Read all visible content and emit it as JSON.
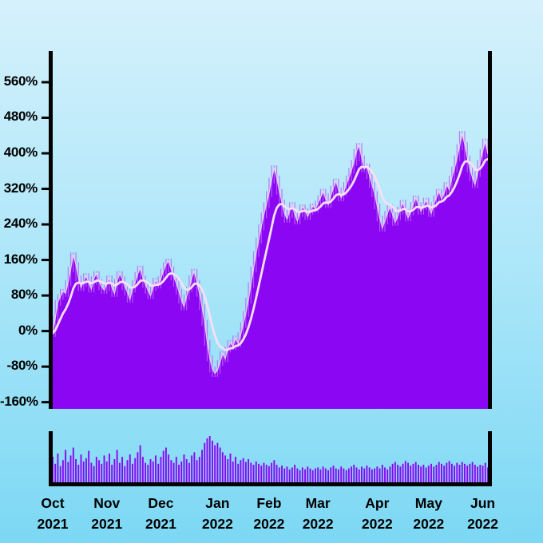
{
  "colors": {
    "background_top": "#d5f1fc",
    "background_bottom": "#7cd8f4",
    "area_fill": "#8b06f3",
    "wick": "#b868f7",
    "edge_line": "#eec9f9",
    "ma_line": "#f6e0f6",
    "axis": "#000000",
    "label": "#000000"
  },
  "chart_data": {
    "type": "area",
    "title": "",
    "grid": false,
    "legend": "none",
    "ylim": [
      -175,
      630
    ],
    "y_ticks": [
      560,
      480,
      400,
      320,
      240,
      160,
      80,
      0,
      -80,
      -160
    ],
    "y_tick_labels": [
      "560%",
      "480%",
      "400%",
      "320%",
      "240%",
      "160%",
      "80%",
      "0%",
      "-80%",
      "-160%"
    ],
    "x_months": [
      {
        "month": "Oct",
        "year": "2021",
        "index": 0
      },
      {
        "month": "Nov",
        "year": "2021",
        "index": 21
      },
      {
        "month": "Dec",
        "year": "2021",
        "index": 42
      },
      {
        "month": "Jan",
        "year": "2022",
        "index": 64
      },
      {
        "month": "Feb",
        "year": "2022",
        "index": 84
      },
      {
        "month": "Mar",
        "year": "2022",
        "index": 103
      },
      {
        "month": "Apr",
        "year": "2022",
        "index": 126
      },
      {
        "month": "May",
        "year": "2022",
        "index": 146
      },
      {
        "month": "Jun",
        "year": "2022",
        "index": 167
      }
    ],
    "series": [
      {
        "name": "percent_change",
        "unit": "%",
        "values": [
          -5,
          30,
          65,
          78,
          90,
          85,
          110,
          140,
          172,
          150,
          120,
          98,
          112,
          125,
          108,
          95,
          118,
          130,
          112,
          100,
          92,
          105,
          120,
          98,
          85,
          112,
          130,
          118,
          100,
          88,
          72,
          95,
          110,
          128,
          142,
          120,
          105,
          92,
          80,
          98,
          115,
          104,
          118,
          135,
          150,
          158,
          140,
          122,
          108,
          90,
          70,
          55,
          78,
          95,
          120,
          135,
          110,
          85,
          55,
          20,
          -25,
          -60,
          -85,
          -95,
          -88,
          -70,
          -50,
          -62,
          -40,
          -25,
          -35,
          -15,
          -28,
          -8,
          15,
          40,
          70,
          105,
          140,
          175,
          205,
          235,
          262,
          285,
          310,
          340,
          368,
          345,
          315,
          290,
          265,
          252,
          270,
          285,
          262,
          248,
          265,
          280,
          272,
          258,
          270,
          282,
          275,
          288,
          300,
          315,
          298,
          285,
          305,
          322,
          338,
          318,
          300,
          312,
          330,
          345,
          362,
          380,
          405,
          418,
          390,
          365,
          372,
          350,
          330,
          310,
          282,
          255,
          232,
          248,
          265,
          280,
          262,
          245,
          258,
          275,
          290,
          270,
          255,
          268,
          285,
          300,
          285,
          270,
          282,
          295,
          280,
          265,
          285,
          300,
          315,
          298,
          310,
          330,
          318,
          345,
          365,
          390,
          415,
          445,
          420,
          390,
          365,
          345,
          330,
          355,
          380,
          405,
          428,
          398
        ]
      },
      {
        "name": "moving_average",
        "derived_from": "percent_change",
        "method": "ema",
        "alpha": 0.2
      }
    ],
    "volume": {
      "name": "volume",
      "normalized": true,
      "values": [
        0.55,
        0.4,
        0.62,
        0.35,
        0.48,
        0.7,
        0.44,
        0.58,
        0.75,
        0.5,
        0.38,
        0.6,
        0.45,
        0.52,
        0.68,
        0.42,
        0.35,
        0.55,
        0.48,
        0.4,
        0.58,
        0.45,
        0.62,
        0.38,
        0.5,
        0.7,
        0.42,
        0.55,
        0.35,
        0.48,
        0.6,
        0.4,
        0.52,
        0.65,
        0.8,
        0.55,
        0.42,
        0.38,
        0.5,
        0.45,
        0.58,
        0.4,
        0.55,
        0.68,
        0.75,
        0.6,
        0.48,
        0.42,
        0.55,
        0.38,
        0.45,
        0.6,
        0.5,
        0.42,
        0.58,
        0.65,
        0.48,
        0.55,
        0.7,
        0.85,
        0.95,
        1.0,
        0.9,
        0.8,
        0.85,
        0.75,
        0.65,
        0.58,
        0.5,
        0.62,
        0.45,
        0.55,
        0.4,
        0.48,
        0.52,
        0.44,
        0.5,
        0.42,
        0.38,
        0.45,
        0.4,
        0.36,
        0.42,
        0.38,
        0.35,
        0.42,
        0.48,
        0.38,
        0.32,
        0.36,
        0.3,
        0.34,
        0.28,
        0.32,
        0.38,
        0.3,
        0.26,
        0.32,
        0.28,
        0.34,
        0.3,
        0.26,
        0.3,
        0.32,
        0.28,
        0.34,
        0.3,
        0.26,
        0.32,
        0.36,
        0.3,
        0.28,
        0.34,
        0.3,
        0.26,
        0.3,
        0.34,
        0.38,
        0.32,
        0.28,
        0.34,
        0.3,
        0.36,
        0.32,
        0.28,
        0.3,
        0.34,
        0.3,
        0.38,
        0.32,
        0.28,
        0.34,
        0.4,
        0.44,
        0.38,
        0.34,
        0.4,
        0.46,
        0.42,
        0.36,
        0.4,
        0.44,
        0.38,
        0.34,
        0.38,
        0.32,
        0.36,
        0.4,
        0.34,
        0.38,
        0.44,
        0.4,
        0.36,
        0.42,
        0.46,
        0.4,
        0.36,
        0.42,
        0.38,
        0.44,
        0.4,
        0.36,
        0.4,
        0.44,
        0.38,
        0.34,
        0.38,
        0.36,
        0.42,
        0.32
      ]
    }
  }
}
